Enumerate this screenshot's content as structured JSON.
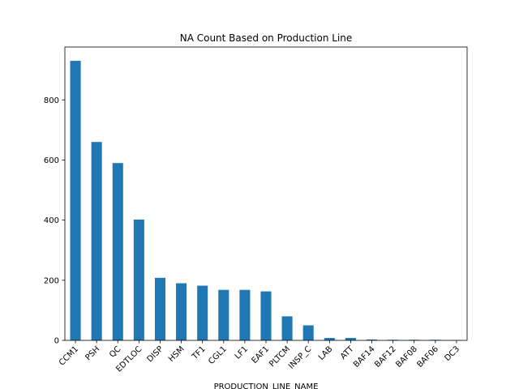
{
  "chart_data": {
    "type": "bar",
    "title": "NA Count Based on Production Line",
    "xlabel": "PRODUCTION_LINE_NAME",
    "ylabel": "",
    "categories": [
      "CCM1",
      "PSH",
      "QC",
      "EDTLOC",
      "DISP",
      "HSM",
      "TF1",
      "CGL1",
      "LF1",
      "EAF1",
      "PLTCM",
      "INSP_C",
      "LAB",
      "ATT",
      "BAF14",
      "BAF12",
      "BAF08",
      "BAF06",
      "DC3"
    ],
    "values": [
      930,
      660,
      590,
      402,
      208,
      190,
      182,
      168,
      168,
      163,
      80,
      50,
      8,
      8,
      3,
      2,
      2,
      2,
      1
    ],
    "ylim": [
      0,
      976
    ],
    "yticks": [
      0,
      200,
      400,
      600,
      800
    ],
    "bar_color": "#1f77b4",
    "grid": false,
    "legend": "none"
  }
}
